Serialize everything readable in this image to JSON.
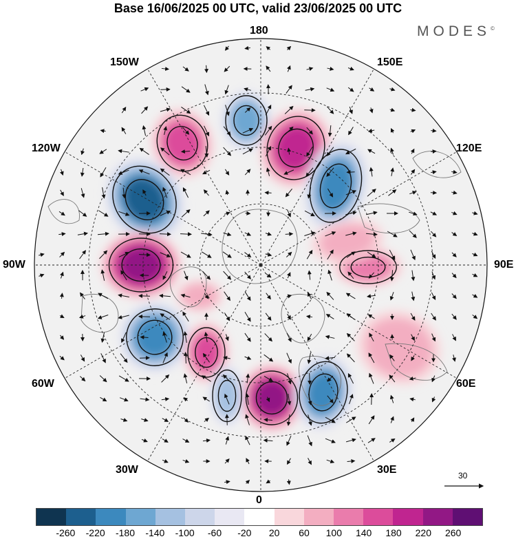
{
  "title": "Base 16/06/2025 00 UTC, valid 23/06/2025 00 UTC",
  "brand": "MODES",
  "brand_mark": "©",
  "lon_labels": {
    "top": "180",
    "top_left": "150W",
    "top_right": "150E",
    "upper_left": "120W",
    "upper_right": "120E",
    "left": "90W",
    "right": "90E",
    "lower_left": "60W",
    "lower_right": "60E",
    "bottom_left": "30W",
    "bottom_right": "30E",
    "bottom": "0"
  },
  "wind_reference": "30",
  "colorbar": {
    "colors": [
      "#0f3450",
      "#1d5f8e",
      "#3c89be",
      "#6ea7d2",
      "#a5c1e1",
      "#cdd6ea",
      "#e9e8f3",
      "#ffffff",
      "#f9d7dc",
      "#f3aec1",
      "#ea7cac",
      "#dc4c9b",
      "#c02590",
      "#921885",
      "#5f0f73"
    ],
    "tick_labels": [
      "-260",
      "-220",
      "-180",
      "-140",
      "-100",
      "-60",
      "-20",
      "20",
      "60",
      "100",
      "140",
      "180",
      "220",
      "260"
    ]
  },
  "anomaly_centers": [
    {
      "name": "pos-150w-north",
      "value": 150
    },
    {
      "name": "neg-180",
      "value": -150
    },
    {
      "name": "pos-150e",
      "value": 190
    },
    {
      "name": "neg-120e",
      "value": -180
    },
    {
      "name": "neg-120w",
      "value": -220
    },
    {
      "name": "pos-90w",
      "value": 240
    },
    {
      "name": "pos-90e",
      "value": 110
    },
    {
      "name": "pos-100e",
      "value": 80
    },
    {
      "name": "neg-60w",
      "value": -190
    },
    {
      "name": "pos-50w",
      "value": 150
    },
    {
      "name": "pos-10e",
      "value": 230
    },
    {
      "name": "neg-20e",
      "value": -180
    },
    {
      "name": "pos-60e",
      "value": 70
    },
    {
      "name": "neg-40w",
      "value": -120
    },
    {
      "name": "pos-75w",
      "value": 90
    }
  ]
}
